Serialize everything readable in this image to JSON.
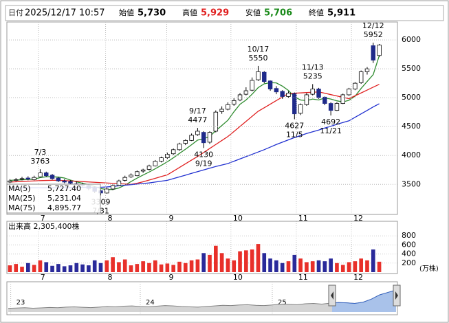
{
  "header": {
    "date_label": "日付",
    "datetime": "2025/12/17 10:57",
    "open_label": "始値",
    "open": "5,730",
    "high_label": "高値",
    "high": "5,929",
    "low_label": "安値",
    "low": "5,706",
    "close_label": "終値",
    "close": "5,911"
  },
  "chart_data": [
    {
      "type": "candlestick",
      "up_color": "#ffffff",
      "down_color": "#1f2a8a",
      "edge_color": "#000000",
      "xlim": [
        -0.5,
        64
      ],
      "ylim": [
        2980,
        6310
      ],
      "yticks": [
        3500,
        4000,
        4500,
        5000,
        5500,
        6000
      ],
      "grid": true,
      "xticks": [
        {
          "value": 4.7,
          "label": "7"
        },
        {
          "value": 15.8,
          "label": "8"
        },
        {
          "value": 25.9,
          "label": "9"
        },
        {
          "value": 36.5,
          "label": "10"
        },
        {
          "value": 47.3,
          "label": "11"
        },
        {
          "value": 56.4,
          "label": "12"
        }
      ],
      "candles": [
        [
          3540,
          3590,
          3520,
          3560
        ],
        [
          3570,
          3610,
          3550,
          3580
        ],
        [
          3590,
          3630,
          3570,
          3600
        ],
        [
          3610,
          3640,
          3570,
          3590
        ],
        [
          3580,
          3650,
          3570,
          3620
        ],
        [
          3630,
          3763,
          3620,
          3700
        ],
        [
          3700,
          3720,
          3630,
          3650
        ],
        [
          3660,
          3680,
          3580,
          3600
        ],
        [
          3610,
          3630,
          3540,
          3560
        ],
        [
          3560,
          3590,
          3520,
          3540
        ],
        [
          3550,
          3570,
          3500,
          3520
        ],
        [
          3510,
          3550,
          3480,
          3500
        ],
        [
          3500,
          3530,
          3460,
          3480
        ],
        [
          3480,
          3500,
          3400,
          3430
        ],
        [
          3440,
          3460,
          3350,
          3380
        ],
        [
          3390,
          3410,
          3309,
          3350
        ],
        [
          3350,
          3440,
          3340,
          3420
        ],
        [
          3420,
          3500,
          3400,
          3480
        ],
        [
          3480,
          3580,
          3470,
          3560
        ],
        [
          3570,
          3650,
          3550,
          3620
        ],
        [
          3630,
          3690,
          3610,
          3660
        ],
        [
          3650,
          3740,
          3640,
          3720
        ],
        [
          3730,
          3770,
          3700,
          3750
        ],
        [
          3760,
          3840,
          3740,
          3820
        ],
        [
          3820,
          3920,
          3810,
          3900
        ],
        [
          3900,
          3980,
          3880,
          3960
        ],
        [
          3960,
          4050,
          3940,
          4020
        ],
        [
          4030,
          4120,
          4010,
          4100
        ],
        [
          4100,
          4220,
          4080,
          4200
        ],
        [
          4210,
          4280,
          4180,
          4260
        ],
        [
          4260,
          4380,
          4250,
          4350
        ],
        [
          4360,
          4477,
          4340,
          4420
        ],
        [
          4400,
          4420,
          4130,
          4220
        ],
        [
          4230,
          4420,
          4200,
          4400
        ],
        [
          4420,
          4780,
          4400,
          4750
        ],
        [
          4760,
          4850,
          4720,
          4800
        ],
        [
          4800,
          4920,
          4780,
          4880
        ],
        [
          4890,
          4990,
          4860,
          4950
        ],
        [
          4960,
          5080,
          4940,
          5050
        ],
        [
          5060,
          5180,
          5040,
          5120
        ],
        [
          5130,
          5350,
          5110,
          5300
        ],
        [
          5310,
          5550,
          5290,
          5450
        ],
        [
          5440,
          5460,
          5250,
          5280
        ],
        [
          5290,
          5300,
          5120,
          5150
        ],
        [
          5160,
          5200,
          5060,
          5100
        ],
        [
          5110,
          5130,
          4980,
          5020
        ],
        [
          5020,
          5110,
          5000,
          5080
        ],
        [
          5070,
          5090,
          4627,
          4720
        ],
        [
          4730,
          4900,
          4700,
          4880
        ],
        [
          4880,
          5080,
          4860,
          5050
        ],
        [
          5060,
          5235,
          5040,
          5150
        ],
        [
          5150,
          5170,
          4980,
          5000
        ],
        [
          5010,
          5020,
          4870,
          4900
        ],
        [
          4900,
          4920,
          4692,
          4780
        ],
        [
          4780,
          4920,
          4770,
          4900
        ],
        [
          4900,
          5070,
          4890,
          5050
        ],
        [
          5050,
          5170,
          5030,
          5150
        ],
        [
          5150,
          5270,
          5130,
          5250
        ],
        [
          5260,
          5470,
          5240,
          5450
        ],
        [
          5450,
          5530,
          5400,
          5500
        ],
        [
          5900,
          5952,
          5600,
          5650
        ],
        [
          5730,
          5929,
          5706,
          5911
        ]
      ],
      "ma": [
        {
          "name": "MA(5)",
          "color": "#2e8b2e",
          "last_label": "5,727.40",
          "values": [
            3570,
            3575,
            3580,
            3585,
            3590,
            3618,
            3632,
            3632,
            3626,
            3610,
            3574,
            3544,
            3520,
            3494,
            3462,
            3428,
            3412,
            3412,
            3438,
            3486,
            3548,
            3608,
            3662,
            3714,
            3770,
            3830,
            3890,
            3960,
            4036,
            4108,
            4186,
            4266,
            4290,
            4330,
            4428,
            4518,
            4610,
            4756,
            4886,
            4960,
            5060,
            5174,
            5240,
            5260,
            5256,
            5200,
            5126,
            5014,
            4960,
            4950,
            4976,
            4960,
            4996,
            4976,
            4946,
            4926,
            4956,
            5026,
            5160,
            5280,
            5400,
            5727.4
          ]
        },
        {
          "name": "MA(25)",
          "color": "#e02020",
          "last_label": "5,231.04",
          "values": [
            3540,
            3545,
            3550,
            3555,
            3560,
            3565,
            3568,
            3570,
            3570,
            3565,
            3560,
            3554,
            3548,
            3542,
            3536,
            3530,
            3524,
            3518,
            3512,
            3506,
            3500,
            3520,
            3545,
            3575,
            3605,
            3635,
            3665,
            3728,
            3792,
            3856,
            3920,
            3983,
            4052,
            4121,
            4190,
            4259,
            4328,
            4415,
            4502,
            4590,
            4678,
            4765,
            4826,
            4888,
            4950,
            5011,
            5072,
            5078,
            5083,
            5089,
            5094,
            5100,
            5077,
            5053,
            5030,
            5006,
            4983,
            5033,
            5082,
            5132,
            5182,
            5231.04
          ]
        },
        {
          "name": "MA(75)",
          "color": "#2030d0",
          "last_label": "4,895.77",
          "values": [
            3440,
            3440,
            3440,
            3440,
            3440,
            3440,
            3440,
            3440,
            3442,
            3444,
            3446,
            3448,
            3450,
            3450,
            3450,
            3450,
            3455,
            3465,
            3475,
            3485,
            3495,
            3505,
            3515,
            3525,
            3540,
            3555,
            3570,
            3600,
            3630,
            3660,
            3690,
            3720,
            3750,
            3780,
            3810,
            3835,
            3860,
            3900,
            3940,
            3980,
            4020,
            4060,
            4100,
            4145,
            4190,
            4230,
            4270,
            4310,
            4345,
            4380,
            4410,
            4440,
            4475,
            4505,
            4540,
            4570,
            4600,
            4660,
            4720,
            4780,
            4840,
            4895.77
          ]
        }
      ],
      "annotations": [
        {
          "index": 5,
          "date": "7/3",
          "value": 3763
        },
        {
          "index": 15,
          "date": "7/31",
          "value": 3309
        },
        {
          "index": 31,
          "date": "9/17",
          "value": 4477
        },
        {
          "index": 32,
          "date": "9/19",
          "value": 4130
        },
        {
          "index": 41,
          "date": "10/17",
          "value": 5550
        },
        {
          "index": 47,
          "date": "11/5",
          "value": 4627
        },
        {
          "index": 50,
          "date": "11/13",
          "value": 5235
        },
        {
          "index": 53,
          "date": "11/21",
          "value": 4692
        },
        {
          "index": 60,
          "date": "12/12",
          "value": 5952
        }
      ]
    },
    {
      "type": "volume",
      "title": "出来高 2,305,400株",
      "unit": "(万株)",
      "up_color": "#e8302a",
      "down_color": "#2a2a9a",
      "xlim": [
        -0.5,
        64
      ],
      "ylim": [
        0,
        1000
      ],
      "yticks": [
        200,
        400,
        600,
        800
      ],
      "values": [
        150,
        180,
        120,
        200,
        160,
        260,
        220,
        140,
        180,
        130,
        150,
        200,
        170,
        150,
        260,
        200,
        260,
        330,
        220,
        280,
        150,
        180,
        240,
        200,
        260,
        170,
        190,
        160,
        230,
        200,
        260,
        280,
        420,
        380,
        580,
        420,
        300,
        260,
        460,
        480,
        500,
        620,
        420,
        300,
        260,
        200,
        240,
        380,
        300,
        220,
        240,
        260,
        240,
        300,
        200,
        160,
        220,
        240,
        300,
        260,
        500,
        230
      ]
    },
    {
      "type": "area",
      "color": "#b8b8b8",
      "line_color": "#808080",
      "selected_color": "#a9c2ea",
      "selected_line": "#3563c0",
      "xlim": [
        0,
        47
      ],
      "ylim": [
        2000,
        6500
      ],
      "xticks": [
        {
          "value": 0.3,
          "label": "23"
        },
        {
          "value": 16,
          "label": "24"
        },
        {
          "value": 32,
          "label": "25"
        }
      ],
      "values": [
        2600,
        2650,
        2700,
        2620,
        2680,
        2750,
        2700,
        2800,
        2850,
        2780,
        2720,
        2800,
        2900,
        2850,
        2950,
        3000,
        2900,
        2850,
        2950,
        3050,
        3000,
        2900,
        2850,
        2800,
        2900,
        3000,
        3100,
        3050,
        3150,
        3200,
        3100,
        3050,
        3150,
        3300,
        3250,
        3200,
        3350,
        3400,
        3300,
        3450,
        3550,
        3500,
        3400,
        3600,
        4100,
        4800,
        5200,
        5600
      ]
    }
  ]
}
